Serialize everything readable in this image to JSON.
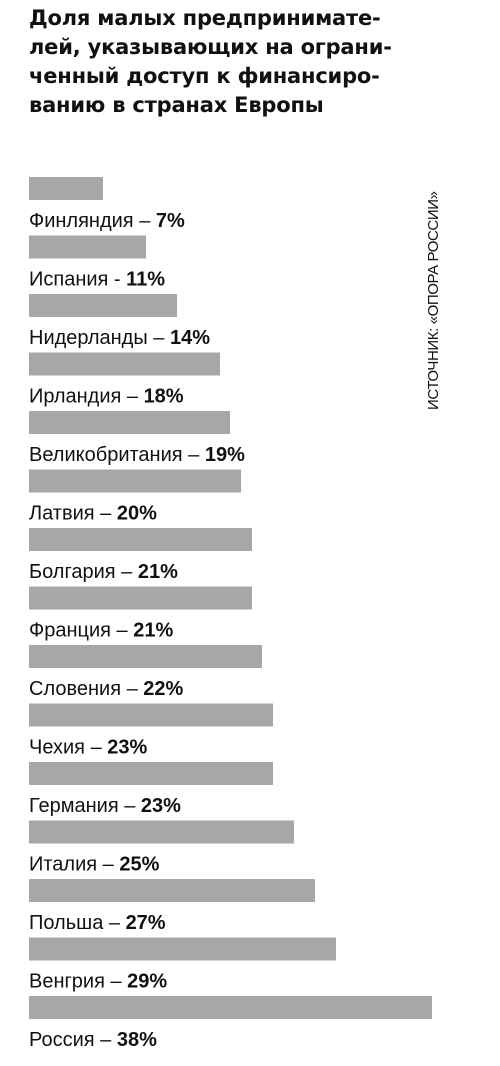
{
  "title": "Доля малых предпринимате-\nлей, указывающих на ограни-\nченный доступ к финансиро-\nванию в странах Европы",
  "source": "ИСТОЧНИК: «ОПОРА РОССИИ»",
  "colors": {
    "bar": "#a7a7a9",
    "text": "#111111"
  },
  "chart_data": {
    "type": "bar",
    "orientation": "horizontal",
    "unit": "%",
    "title": "Доля малых предпринимателей, указывающих на ограниченный доступ к финансированию в странах Европы",
    "categories": [
      "Финляндия",
      "Испания",
      "Нидерланды",
      "Ирландия",
      "Великобритания",
      "Латвия",
      "Болгария",
      "Франция",
      "Словения",
      "Чехия",
      "Германия",
      "Италия",
      "Польша",
      "Венгрия",
      "Россия"
    ],
    "separators": [
      " – ",
      " - ",
      " – ",
      " – ",
      " – ",
      " – ",
      " – ",
      " – ",
      " – ",
      " – ",
      " – ",
      " – ",
      " – ",
      " – ",
      " – "
    ],
    "values": [
      7,
      11,
      14,
      18,
      19,
      20,
      21,
      21,
      22,
      23,
      23,
      25,
      27,
      29,
      38
    ],
    "xlim": [
      0,
      38
    ],
    "grid": false,
    "legend": "none"
  }
}
